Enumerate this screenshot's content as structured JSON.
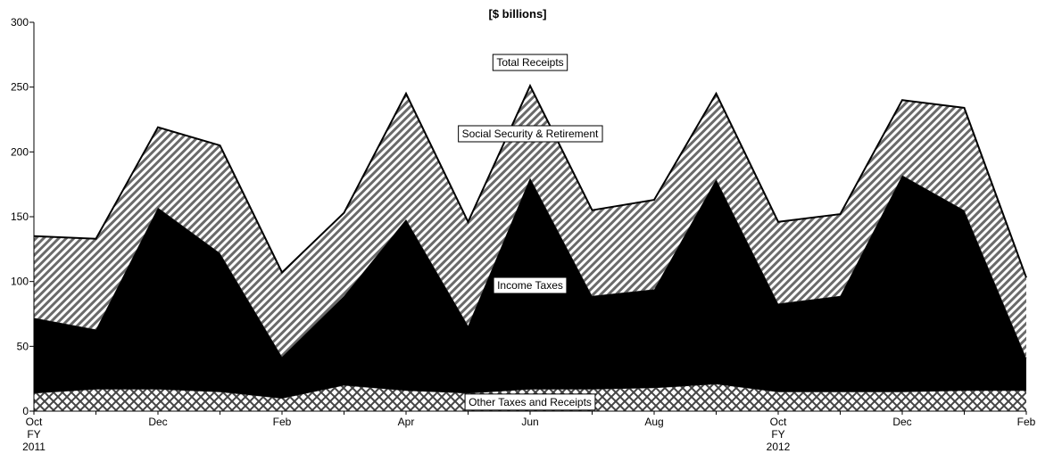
{
  "chart_data": {
    "type": "area",
    "stacked": true,
    "title": "[$ billions]",
    "ylim": [
      0,
      300
    ],
    "yticks": [
      0,
      50,
      100,
      150,
      200,
      250,
      300
    ],
    "grid": false,
    "x": [
      "Oct 2010",
      "Nov 2010",
      "Dec 2010",
      "Jan 2011",
      "Feb 2011",
      "Mar 2011",
      "Apr 2011",
      "May 2011",
      "Jun 2011",
      "Jul 2011",
      "Aug 2011",
      "Sep 2011",
      "Oct 2011",
      "Nov 2011",
      "Dec 2011",
      "Jan 2012",
      "Feb 2012"
    ],
    "x_tick_labels": [
      {
        "index": 0,
        "lines": [
          "Oct",
          "FY",
          "2011"
        ]
      },
      {
        "index": 2,
        "lines": [
          "Dec"
        ]
      },
      {
        "index": 4,
        "lines": [
          "Feb"
        ]
      },
      {
        "index": 6,
        "lines": [
          "Apr"
        ]
      },
      {
        "index": 8,
        "lines": [
          "Jun"
        ]
      },
      {
        "index": 10,
        "lines": [
          "Aug"
        ]
      },
      {
        "index": 12,
        "lines": [
          "Oct",
          "FY",
          "2012"
        ]
      },
      {
        "index": 14,
        "lines": [
          "Dec"
        ]
      },
      {
        "index": 16,
        "lines": [
          "Feb"
        ]
      }
    ],
    "totals": [
      135,
      133,
      219,
      205,
      107,
      153,
      245,
      146,
      251,
      155,
      163,
      245,
      146,
      152,
      240,
      234,
      103
    ],
    "series": [
      {
        "name": "Other Taxes and Receipts",
        "fill": "crosshatch",
        "values": [
          14,
          17,
          17,
          15,
          10,
          20,
          16,
          14,
          17,
          17,
          18,
          21,
          15,
          15,
          15,
          16,
          16
        ]
      },
      {
        "name": "Income Taxes",
        "fill": "solid",
        "values": [
          58,
          46,
          140,
          107,
          32,
          69,
          132,
          52,
          163,
          72,
          76,
          158,
          68,
          74,
          167,
          139,
          25
        ]
      },
      {
        "name": "Social Security & Retirement",
        "fill": "diagonal",
        "values": [
          63,
          70,
          62,
          83,
          65,
          64,
          97,
          80,
          71,
          66,
          69,
          66,
          63,
          63,
          58,
          79,
          62
        ]
      }
    ],
    "annotations": [
      {
        "text": "Total Receipts",
        "index": 8,
        "value": 269
      },
      {
        "text": "Social Security & Retirement",
        "index": 8,
        "value": 214
      },
      {
        "text": "Income Taxes",
        "index": 8,
        "value": 97
      },
      {
        "text": "Other Taxes and Receipts",
        "index": 8,
        "value": 7
      }
    ],
    "colors": {
      "line": "#000000",
      "income": "#000000",
      "hatch": "#555555",
      "background": "#ffffff"
    }
  }
}
